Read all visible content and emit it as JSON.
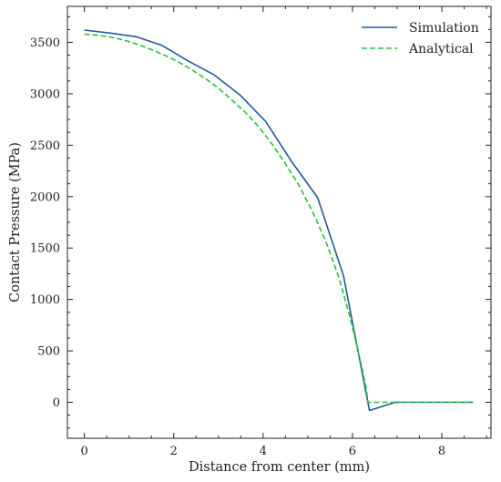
{
  "chart_data": {
    "type": "line",
    "xlabel": "Distance from center (mm)",
    "ylabel": "Contact Pressure (MPa)",
    "xlim": [
      -0.38,
      9.1
    ],
    "ylim": [
      -350,
      3850
    ],
    "xticks": [
      0,
      2,
      4,
      6,
      8
    ],
    "yticks": [
      0,
      500,
      1000,
      1500,
      2000,
      2500,
      3000,
      3500
    ],
    "grid": false,
    "legend_position": "top-right",
    "series": [
      {
        "name": "Simulation",
        "color": "#1f5a99",
        "style": "solid",
        "x": [
          0,
          0.58,
          1.16,
          1.74,
          2.32,
          2.9,
          3.48,
          4.06,
          4.64,
          5.22,
          5.8,
          6.38,
          6.96,
          7.54,
          8.12,
          8.7
        ],
        "y": [
          3620,
          3590,
          3555,
          3470,
          3320,
          3185,
          2990,
          2730,
          2340,
          1990,
          1230,
          -80,
          0,
          0,
          0,
          0
        ]
      },
      {
        "name": "Analytical",
        "color": "#2bbf3f",
        "style": "dashed",
        "x": [
          0,
          0.3,
          0.6,
          0.9,
          1.2,
          1.5,
          1.8,
          2.1,
          2.4,
          2.7,
          3.0,
          3.3,
          3.6,
          3.9,
          4.2,
          4.5,
          4.8,
          5.1,
          5.4,
          5.7,
          5.95,
          6.2,
          6.3,
          6.35,
          6.5,
          7.0,
          7.5,
          8.0,
          8.5,
          8.7
        ],
        "y": [
          3580,
          3570,
          3550,
          3520,
          3480,
          3430,
          3375,
          3310,
          3235,
          3150,
          3055,
          2940,
          2820,
          2680,
          2510,
          2320,
          2110,
          1860,
          1570,
          1210,
          820,
          360,
          150,
          0,
          0,
          0,
          0,
          0,
          0,
          0
        ]
      }
    ]
  }
}
